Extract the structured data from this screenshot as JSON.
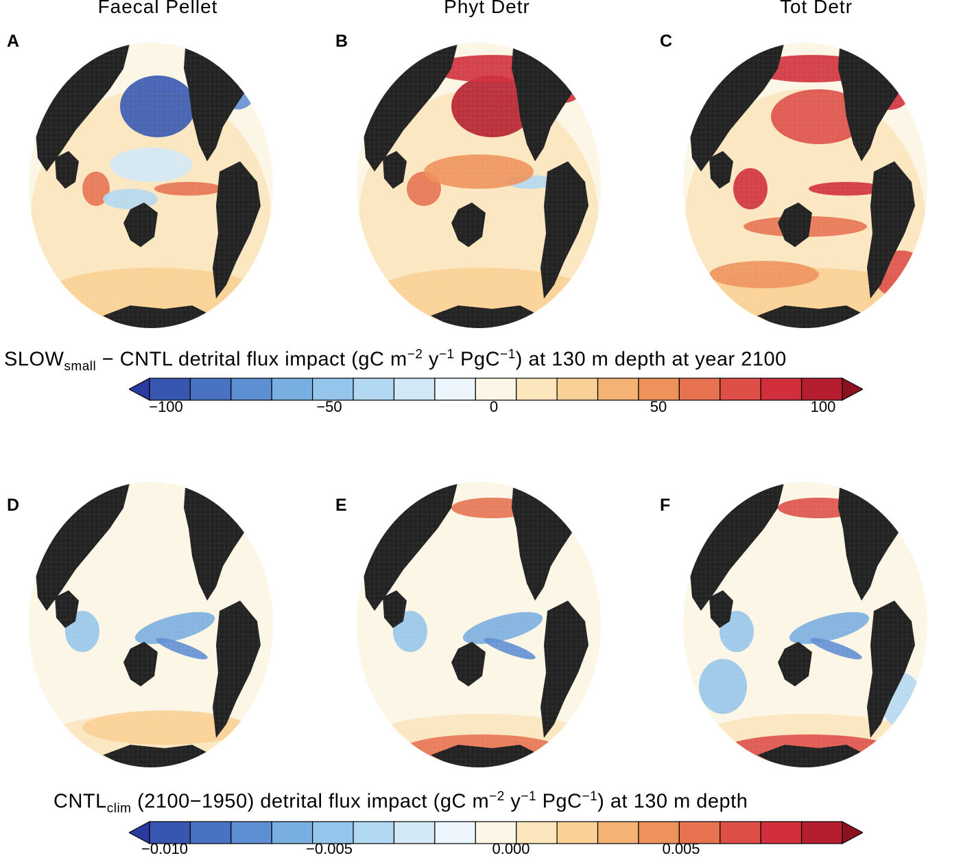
{
  "column_titles": [
    "Faecal Pellet",
    "Phyt Detr",
    "Tot Detr"
  ],
  "panels": [
    {
      "label": "A",
      "row": 0,
      "variant": "top-fp"
    },
    {
      "label": "B",
      "row": 0,
      "variant": "top-phyt"
    },
    {
      "label": "C",
      "row": 0,
      "variant": "top-tot"
    },
    {
      "label": "D",
      "row": 1,
      "variant": "bot-fp"
    },
    {
      "label": "E",
      "row": 1,
      "variant": "bot-phyt"
    },
    {
      "label": "F",
      "row": 1,
      "variant": "bot-tot"
    }
  ],
  "colorbars": [
    {
      "title_parts": {
        "a": "SLOW",
        "a_sub": "small",
        "b": " − CNTL detrital flux impact (gC m",
        "exp1": "−2",
        "c": " y",
        "exp2": "−1",
        "d": " PgC",
        "exp3": "−1",
        "e": ") at 130 m depth at year 2100"
      },
      "ticks": [
        "−100",
        "−50",
        "0",
        "50",
        "100"
      ],
      "range": [
        -100,
        100
      ]
    },
    {
      "title_parts": {
        "a": "CNTL",
        "a_sub": "clim",
        "b": " (2100−1950) detrital flux impact (gC m",
        "exp1": "−2",
        "c": " y",
        "exp2": "−1",
        "d": " PgC",
        "exp3": "−1",
        "e": ") at 130 m depth",
        "extra": ""
      },
      "ticks": [
        "−0.010",
        "−0.005",
        "0.000",
        "0.005"
      ],
      "range": [
        -0.01,
        0.01
      ]
    }
  ],
  "colors": {
    "land": "#222222",
    "ramp": [
      "#2b3a9e",
      "#3656b0",
      "#4a72c2",
      "#5f8fd3",
      "#79aee0",
      "#95c5ea",
      "#b3d8f1",
      "#d2e8f7",
      "#ebf5fb",
      "#fcf6e6",
      "#fbe6bd",
      "#f9d095",
      "#f4b275",
      "#ee925c",
      "#e67250",
      "#dd4f47",
      "#d02f3b",
      "#b51e2e",
      "#8c1220"
    ]
  }
}
